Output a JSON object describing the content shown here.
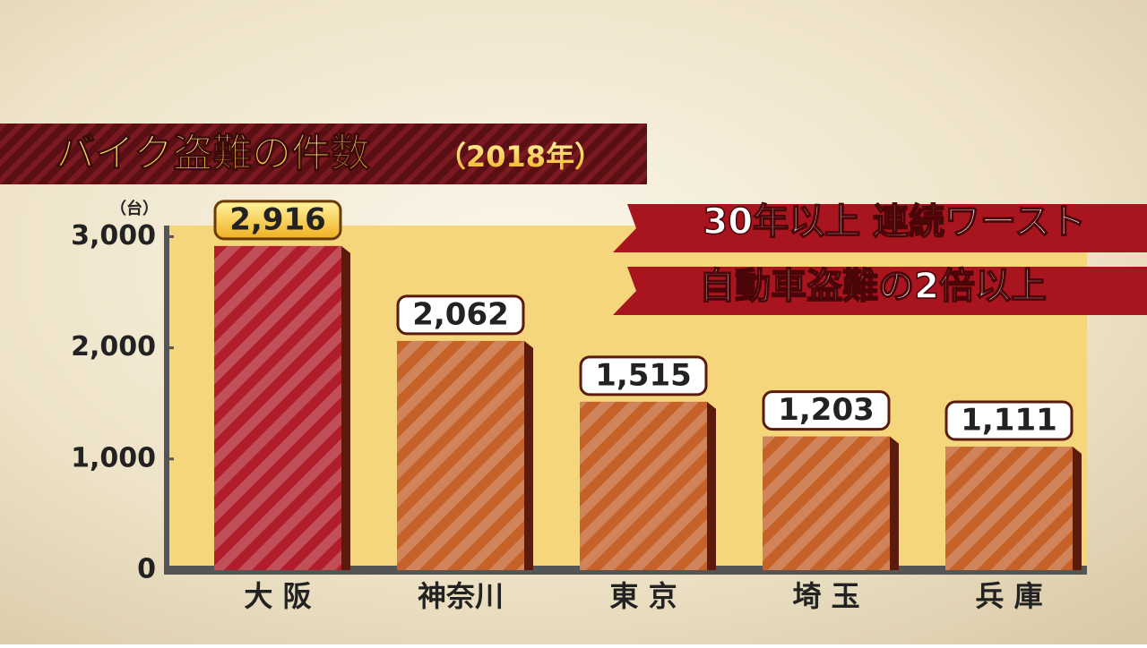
{
  "chart_data": {
    "type": "bar",
    "title": "バイク盗難の件数",
    "subtitle": "（2018年）",
    "y_unit": "（台）",
    "annotations": [
      "30年以上 連続ワースト",
      "自動車盗難の2倍以上"
    ],
    "categories": [
      "大 阪",
      "神奈川",
      "東 京",
      "埼 玉",
      "兵 庫"
    ],
    "values": [
      2916,
      2062,
      1515,
      1203,
      1111
    ],
    "value_labels": [
      "2,916",
      "2,062",
      "1,515",
      "1,203",
      "1,111"
    ],
    "colors": [
      "#b01e2c",
      "#c4622a",
      "#c4622a",
      "#c4622a",
      "#c4622a"
    ],
    "ylim": [
      0,
      3100
    ],
    "yticks": [
      0,
      {
        "value": 1000,
        "label": "1,000"
      },
      {
        "value": 2000,
        "label": "2,000"
      },
      {
        "value": 3000,
        "label": "3,000"
      }
    ]
  }
}
